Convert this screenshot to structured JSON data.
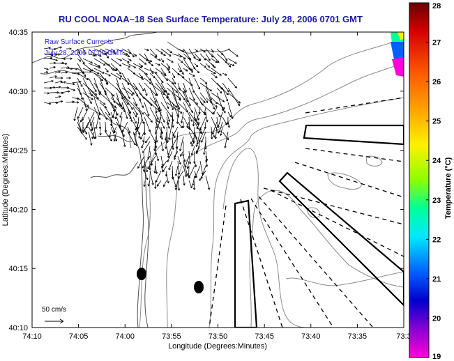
{
  "title": "RU COOL  NOAA–18  Sea Surface Temperature:  July 28, 2006 0701 GMT",
  "map": {
    "overlay_line1": "Raw Surface Currents",
    "overlay_line2": "July 28, 2006 07:00 GMT",
    "scale_label": "50 cm/s",
    "x_axis_label": "Longitude (Degrees:Minutes)",
    "y_axis_label": "Latitude (Degrees:Minutes)",
    "x_ticks": [
      "74:10",
      "74:05",
      "74:00",
      "73:55",
      "73:50",
      "73:45",
      "73:40",
      "73:35",
      "73:3"
    ],
    "y_ticks": [
      "40:35",
      "40:30",
      "40:25",
      "40:20",
      "40:15",
      "40:10"
    ]
  },
  "colorbar": {
    "label": "Temperature (°C)",
    "ticks": [
      "28",
      "27",
      "26",
      "25",
      "24",
      "23",
      "22",
      "21",
      "20",
      "19"
    ],
    "range": [
      19,
      28
    ]
  },
  "colors": {
    "title": "#1a1aa6",
    "overlay_text": "#2a2ad0",
    "land_outline": "#555555",
    "bathymetry": "#888888"
  }
}
